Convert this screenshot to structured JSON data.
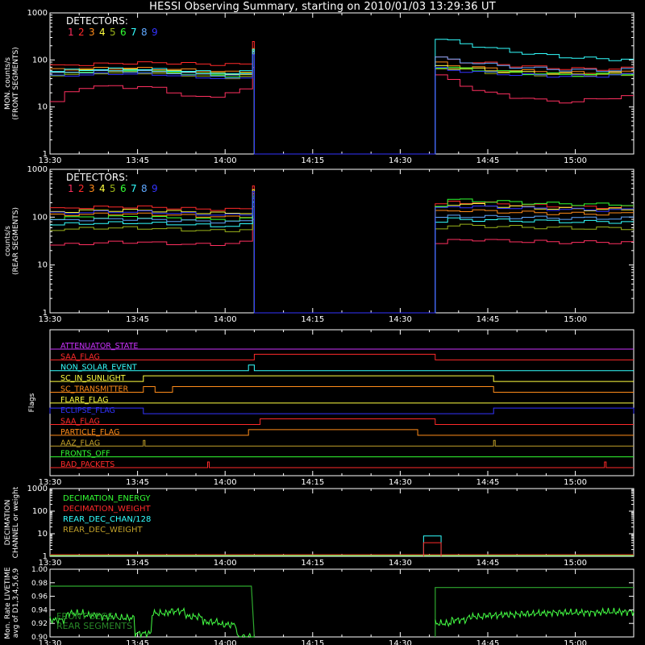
{
  "title": "HESSI Observing Summary, starting on 2010/01/03 13:29:36 UT",
  "colors": {
    "1": "#ff3060",
    "2": "#ff2a2a",
    "3": "#ff8c1a",
    "4": "#ffff40",
    "5": "#9ab31a",
    "6": "#33ff33",
    "7": "#33ffff",
    "8": "#5fa8ff",
    "9": "#3333ff",
    "grid": "#ffffff",
    "violet": "#cc33ff",
    "brown": "#c0a02a"
  },
  "time_ticks": [
    "13:30",
    "13:45",
    "14:00",
    "14:15",
    "14:30",
    "14:45",
    "15:00"
  ],
  "chart_data": [
    {
      "type": "line",
      "name": "front",
      "ylabel": [
        "MON. counts/s",
        "(FRONT SEGMENTS)"
      ],
      "ytick_labels": [
        "1",
        "10",
        "100",
        "1000"
      ],
      "yscale": "log",
      "ylim": [
        1,
        1000
      ],
      "legend_title": "DETECTORS:",
      "legend_digits": [
        "1",
        "2",
        "3",
        "4",
        "5",
        "6",
        "7",
        "8",
        "9"
      ],
      "gap": [
        "14:05",
        "14:36"
      ],
      "series": [
        {
          "color_key": "1",
          "pre": [
            13,
            20,
            26,
            28,
            27,
            26,
            27,
            25,
            21,
            17,
            16,
            17,
            20,
            23
          ],
          "post": [
            48,
            36,
            28,
            24,
            20,
            18,
            16,
            16,
            14,
            13,
            13,
            13,
            14,
            15,
            16,
            17
          ]
        },
        {
          "color_key": "2",
          "pre": [
            75,
            78,
            80,
            82,
            84,
            86,
            87,
            87,
            86,
            84,
            82,
            80,
            80,
            82
          ],
          "post": [
            110,
            100,
            92,
            88,
            84,
            80,
            76,
            73,
            70,
            68,
            66,
            65,
            64,
            64,
            65,
            66
          ]
        },
        {
          "color_key": "3",
          "pre": [
            62,
            64,
            66,
            66,
            67,
            67,
            66,
            65,
            63,
            61,
            59,
            57,
            55,
            58
          ],
          "post": [
            85,
            78,
            72,
            68,
            65,
            62,
            60,
            58,
            56,
            55,
            54,
            53,
            53,
            53,
            54,
            55
          ]
        },
        {
          "color_key": "4",
          "pre": [
            55,
            57,
            59,
            60,
            61,
            61,
            60,
            59,
            57,
            55,
            53,
            51,
            49,
            52
          ],
          "post": [
            75,
            70,
            66,
            63,
            60,
            58,
            56,
            54,
            52,
            51,
            50,
            49,
            49,
            50,
            51,
            52
          ]
        },
        {
          "color_key": "5",
          "pre": [
            48,
            50,
            52,
            53,
            54,
            54,
            53,
            52,
            50,
            48,
            46,
            44,
            42,
            45
          ],
          "post": [
            68,
            64,
            60,
            57,
            55,
            53,
            51,
            50,
            49,
            48,
            47,
            47,
            47,
            48,
            49,
            50
          ]
        },
        {
          "color_key": "6",
          "pre": [
            50,
            52,
            54,
            56,
            57,
            58,
            57,
            56,
            54,
            52,
            50,
            48,
            46,
            50
          ],
          "post": [
            72,
            68,
            64,
            61,
            58,
            56,
            54,
            52,
            51,
            50,
            49,
            48,
            48,
            49,
            50,
            51
          ]
        },
        {
          "color_key": "7",
          "pre": [
            58,
            60,
            62,
            63,
            64,
            64,
            63,
            62,
            60,
            58,
            56,
            54,
            52,
            56
          ],
          "post": [
            280,
            250,
            220,
            200,
            180,
            165,
            150,
            140,
            130,
            125,
            118,
            112,
            108,
            105,
            104,
            103
          ]
        },
        {
          "color_key": "8",
          "pre": [
            52,
            54,
            56,
            57,
            58,
            58,
            57,
            56,
            54,
            52,
            50,
            48,
            46,
            50
          ],
          "post": [
            110,
            100,
            92,
            86,
            80,
            75,
            72,
            68,
            66,
            64,
            62,
            61,
            60,
            60,
            61,
            62
          ]
        },
        {
          "color_key": "9",
          "pre": [
            45,
            47,
            49,
            50,
            51,
            51,
            50,
            49,
            47,
            45,
            43,
            41,
            39,
            43
          ],
          "post": [
            65,
            61,
            58,
            55,
            53,
            51,
            49,
            48,
            47,
            46,
            45,
            45,
            45,
            46,
            47,
            48
          ]
        }
      ]
    },
    {
      "type": "line",
      "name": "rear",
      "ylabel": [
        "counts/s",
        "(REAR SEGMENTS)"
      ],
      "ytick_labels": [
        "1",
        "10",
        "100",
        "1000"
      ],
      "yscale": "log",
      "ylim": [
        1,
        1000
      ],
      "legend_title": "DETECTORS:",
      "legend_digits": [
        "1",
        "2",
        "3",
        "4",
        "5",
        "6",
        "7",
        "8",
        "9"
      ],
      "gap": [
        "14:05",
        "14:36"
      ],
      "series": [
        {
          "color_key": "1",
          "pre": [
            26,
            27,
            28,
            29,
            30,
            30,
            30,
            29,
            28,
            27,
            27,
            27,
            28,
            30
          ],
          "post": [
            28,
            32,
            34,
            34,
            33,
            32,
            32,
            31,
            31,
            30,
            30,
            30,
            30,
            30,
            30,
            30
          ]
        },
        {
          "color_key": "2",
          "pre": [
            150,
            155,
            160,
            162,
            163,
            164,
            163,
            160,
            156,
            152,
            148,
            145,
            145,
            150
          ],
          "post": [
            180,
            210,
            205,
            200,
            195,
            190,
            185,
            180,
            175,
            170,
            168,
            165,
            163,
            162,
            162,
            162
          ]
        },
        {
          "color_key": "3",
          "pre": [
            110,
            113,
            115,
            116,
            117,
            117,
            116,
            114,
            111,
            108,
            105,
            102,
            100,
            104
          ],
          "post": [
            130,
            140,
            138,
            135,
            132,
            130,
            127,
            125,
            123,
            121,
            120,
            119,
            118,
            118,
            118,
            118
          ]
        },
        {
          "color_key": "4",
          "pre": [
            130,
            133,
            136,
            138,
            139,
            139,
            138,
            136,
            132,
            128,
            125,
            122,
            120,
            125
          ],
          "post": [
            160,
            190,
            185,
            180,
            175,
            170,
            165,
            160,
            156,
            152,
            150,
            148,
            146,
            145,
            145,
            145
          ]
        },
        {
          "color_key": "5",
          "pre": [
            55,
            57,
            58,
            59,
            60,
            60,
            59,
            58,
            56,
            54,
            53,
            52,
            52,
            55
          ],
          "post": [
            60,
            68,
            67,
            66,
            65,
            64,
            63,
            62,
            61,
            60,
            60,
            59,
            59,
            59,
            59,
            59
          ]
        },
        {
          "color_key": "6",
          "pre": [
            95,
            98,
            100,
            101,
            102,
            102,
            101,
            99,
            96,
            93,
            91,
            89,
            88,
            92
          ],
          "post": [
            180,
            230,
            225,
            220,
            215,
            210,
            205,
            200,
            196,
            192,
            190,
            188,
            186,
            185,
            185,
            185
          ]
        },
        {
          "color_key": "7",
          "pre": [
            70,
            72,
            74,
            75,
            76,
            76,
            75,
            74,
            72,
            70,
            68,
            66,
            65,
            69
          ],
          "post": [
            80,
            90,
            89,
            88,
            87,
            86,
            85,
            84,
            83,
            82,
            81,
            80,
            80,
            80,
            80,
            80
          ]
        },
        {
          "color_key": "8",
          "pre": [
            85,
            87,
            89,
            90,
            91,
            91,
            90,
            88,
            86,
            84,
            82,
            80,
            79,
            83
          ],
          "post": [
            95,
            105,
            104,
            103,
            102,
            101,
            100,
            99,
            98,
            97,
            96,
            95,
            95,
            95,
            95,
            95
          ]
        },
        {
          "color_key": "9",
          "pre": [
            120,
            123,
            126,
            128,
            129,
            129,
            128,
            126,
            122,
            118,
            115,
            112,
            110,
            115
          ],
          "post": [
            150,
            170,
            168,
            165,
            162,
            160,
            157,
            154,
            151,
            148,
            146,
            144,
            142,
            141,
            141,
            141
          ]
        }
      ]
    },
    {
      "type": "line",
      "name": "flags",
      "ylabel": [
        "Flags"
      ],
      "flags": [
        {
          "label": "ATTENUATOR_STATE",
          "color_key": "violet",
          "raised": []
        },
        {
          "label": "SAA_FLAG",
          "color_key": "2",
          "raised": [
            [
              "14:05",
              "14:36"
            ]
          ]
        },
        {
          "label": "NON_SOLAR_EVENT",
          "color_key": "7",
          "raised": [
            [
              "14:04",
              "14:05"
            ]
          ]
        },
        {
          "label": "SC_IN_SUNLIGHT",
          "color_key": "4",
          "raised": [
            [
              "13:46",
              "14:46"
            ]
          ]
        },
        {
          "label": "SC_TRANSMITTER",
          "color_key": "3",
          "raised": [
            [
              "13:46",
              "13:48"
            ],
            [
              "13:51",
              "14:46"
            ]
          ]
        },
        {
          "label": "FLARE_FLAG",
          "color_key": "4",
          "raised": []
        },
        {
          "label": "ECLIPSE_FLAG",
          "color_key": "9",
          "raised": [
            [
              "13:30",
              "13:46"
            ],
            [
              "14:46",
              "15:10"
            ]
          ]
        },
        {
          "label": "SAA_FLAG",
          "color_key": "2",
          "raised": [
            [
              "14:06",
              "14:36"
            ]
          ]
        },
        {
          "label": "PARTICLE_FLAG",
          "color_key": "3",
          "raised": [
            [
              "14:04",
              "14:33"
            ]
          ]
        },
        {
          "label": "AAZ_FLAG",
          "color_key": "brown",
          "raised": [
            [
              "13:46",
              "13:46"
            ],
            [
              "14:46",
              "14:46"
            ]
          ]
        },
        {
          "label": "FRONTS_OFF",
          "color_key": "6",
          "raised": []
        },
        {
          "label": "BAD_PACKETS",
          "color_key": "2",
          "raised": [
            [
              "13:57",
              "13:57"
            ],
            [
              "15:05",
              "15:05"
            ]
          ]
        }
      ]
    },
    {
      "type": "line",
      "name": "decimation",
      "ylabel": [
        "DECIMATION",
        "CHANNEL or weight"
      ],
      "ytick_labels": [
        "1",
        "10",
        "100",
        "1000"
      ],
      "yscale": "log",
      "ylim": [
        1,
        1000
      ],
      "legend": [
        {
          "label": "DECIMATION_ENERGY",
          "color_key": "6"
        },
        {
          "label": "DECIMATION_WEIGHT",
          "color_key": "2"
        },
        {
          "label": "REAR_DEC_CHAN/128",
          "color_key": "7"
        },
        {
          "label": "REAR_DEC_WEIGHT",
          "color_key": "brown"
        }
      ],
      "box": {
        "x": [
          "14:34",
          "14:37"
        ],
        "rear_dec_chan": 8,
        "rear_dec_weight": 4
      }
    },
    {
      "type": "line",
      "name": "livetime",
      "ylabel": [
        "Mon. Rate LIVETIME",
        "avg of D1,3,4,5,6,9"
      ],
      "ytick_labels": [
        "0.90",
        "0.92",
        "0.94",
        "0.96",
        "0.98",
        "1.00"
      ],
      "ylim": [
        0.9,
        1.0
      ],
      "legend": [
        "FRONT SEGS",
        "REAR SEGMENTS"
      ],
      "front": {
        "pre": 0.975,
        "post": 0.973
      },
      "rear": {
        "pre": [
          0.925,
          0.935,
          0.932,
          0.93,
          0.928,
          0.905,
          0.935,
          0.938,
          0.93,
          0.922,
          0.918,
          0.9
        ],
        "post": [
          0.92,
          0.925,
          0.93,
          0.932,
          0.933,
          0.934,
          0.935,
          0.936,
          0.936,
          0.936,
          0.937,
          0.937
        ]
      }
    }
  ]
}
